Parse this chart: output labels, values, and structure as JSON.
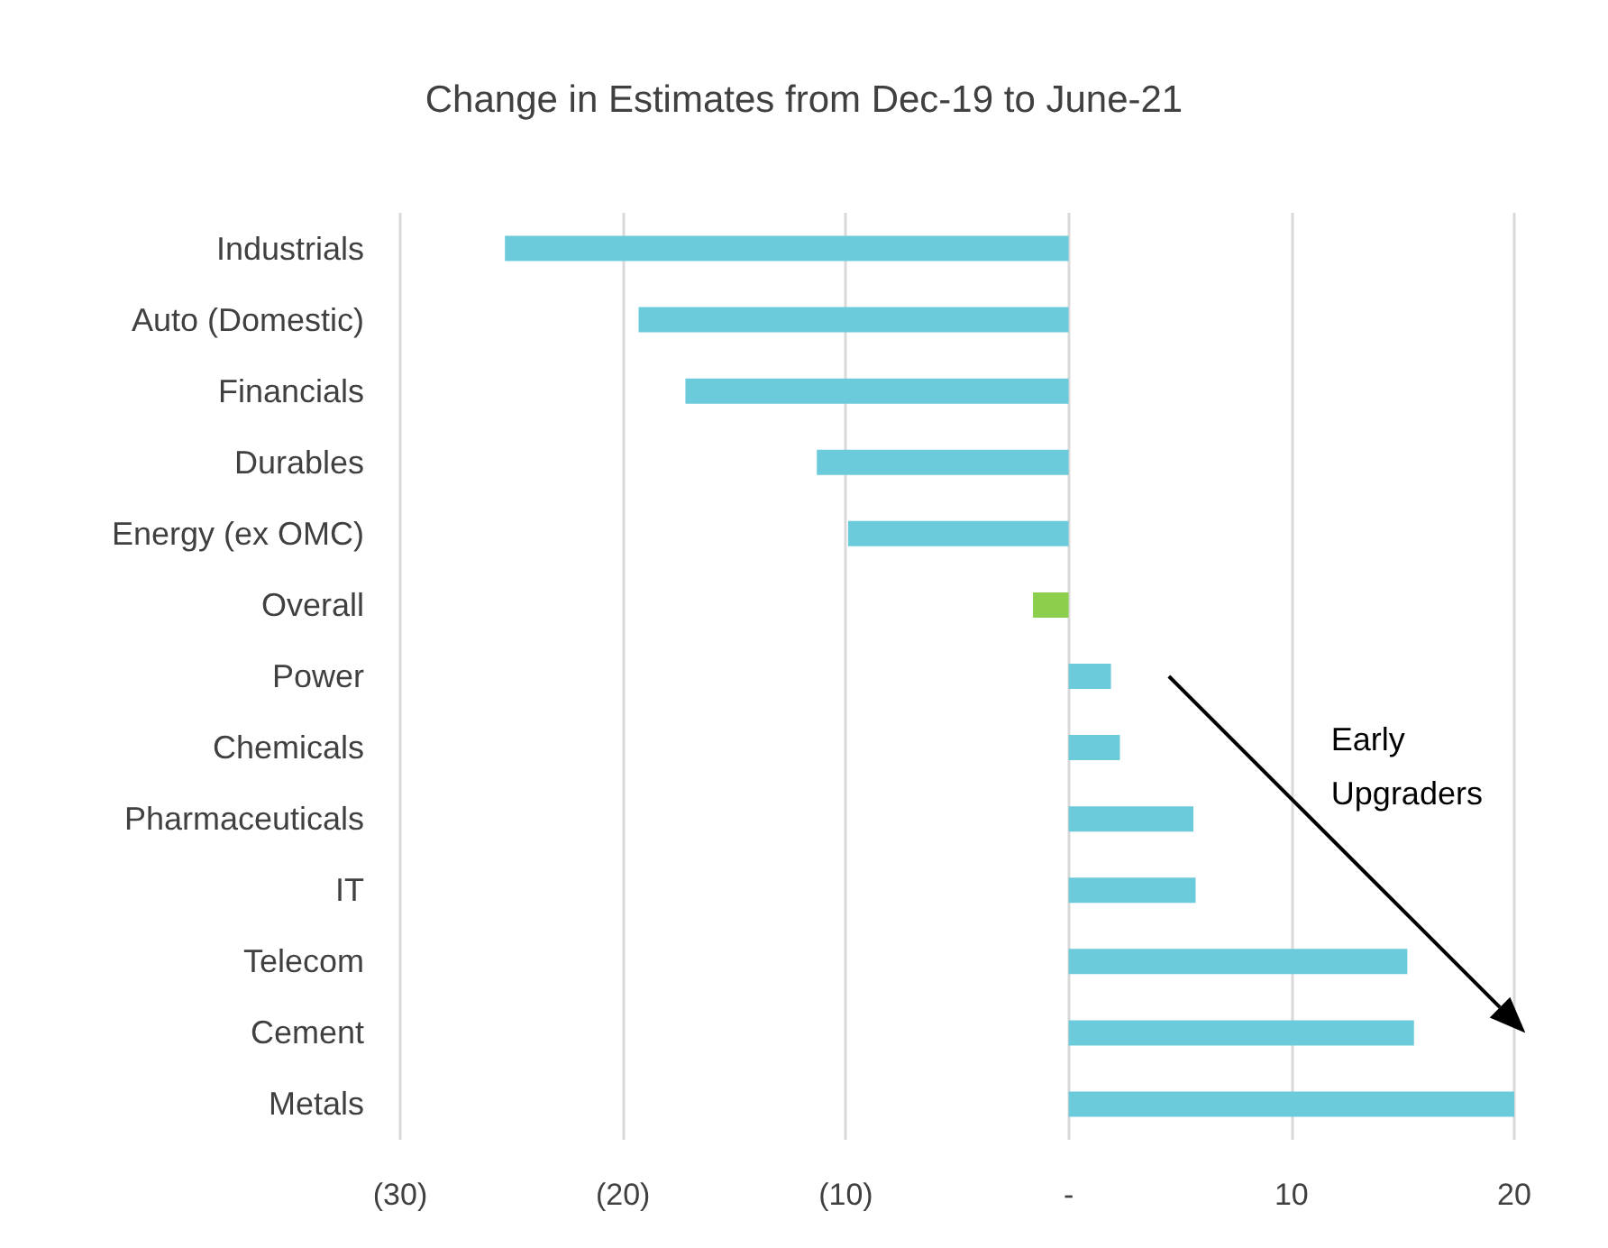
{
  "chart_data": {
    "type": "bar",
    "orientation": "horizontal",
    "title": "Change in Estimates from Dec-19 to June-21",
    "categories": [
      "Industrials",
      "Auto (Domestic)",
      "Financials",
      "Durables",
      "Energy (ex OMC)",
      "Overall",
      "Power",
      "Chemicals",
      "Pharmaceuticals",
      "IT",
      "Telecom",
      "Cement",
      "Metals"
    ],
    "values": [
      -25.3,
      -19.3,
      -17.2,
      -11.3,
      -9.9,
      -1.6,
      1.9,
      2.3,
      5.6,
      5.7,
      15.2,
      15.5,
      20
    ],
    "colors": [
      "#6ccbdb",
      "#6ccbdb",
      "#6ccbdb",
      "#6ccbdb",
      "#6ccbdb",
      "#8ccf4c",
      "#6ccbdb",
      "#6ccbdb",
      "#6ccbdb",
      "#6ccbdb",
      "#6ccbdb",
      "#6ccbdb",
      "#6ccbdb"
    ],
    "xlim": [
      -30,
      20
    ],
    "xticks": [
      {
        "value": -30,
        "label": "(30)"
      },
      {
        "value": -20,
        "label": "(20)"
      },
      {
        "value": -10,
        "label": "(10)"
      },
      {
        "value": 0,
        "label": "-"
      },
      10,
      20
    ],
    "grid": "x",
    "annotations": [
      "Early Upgraders"
    ]
  }
}
